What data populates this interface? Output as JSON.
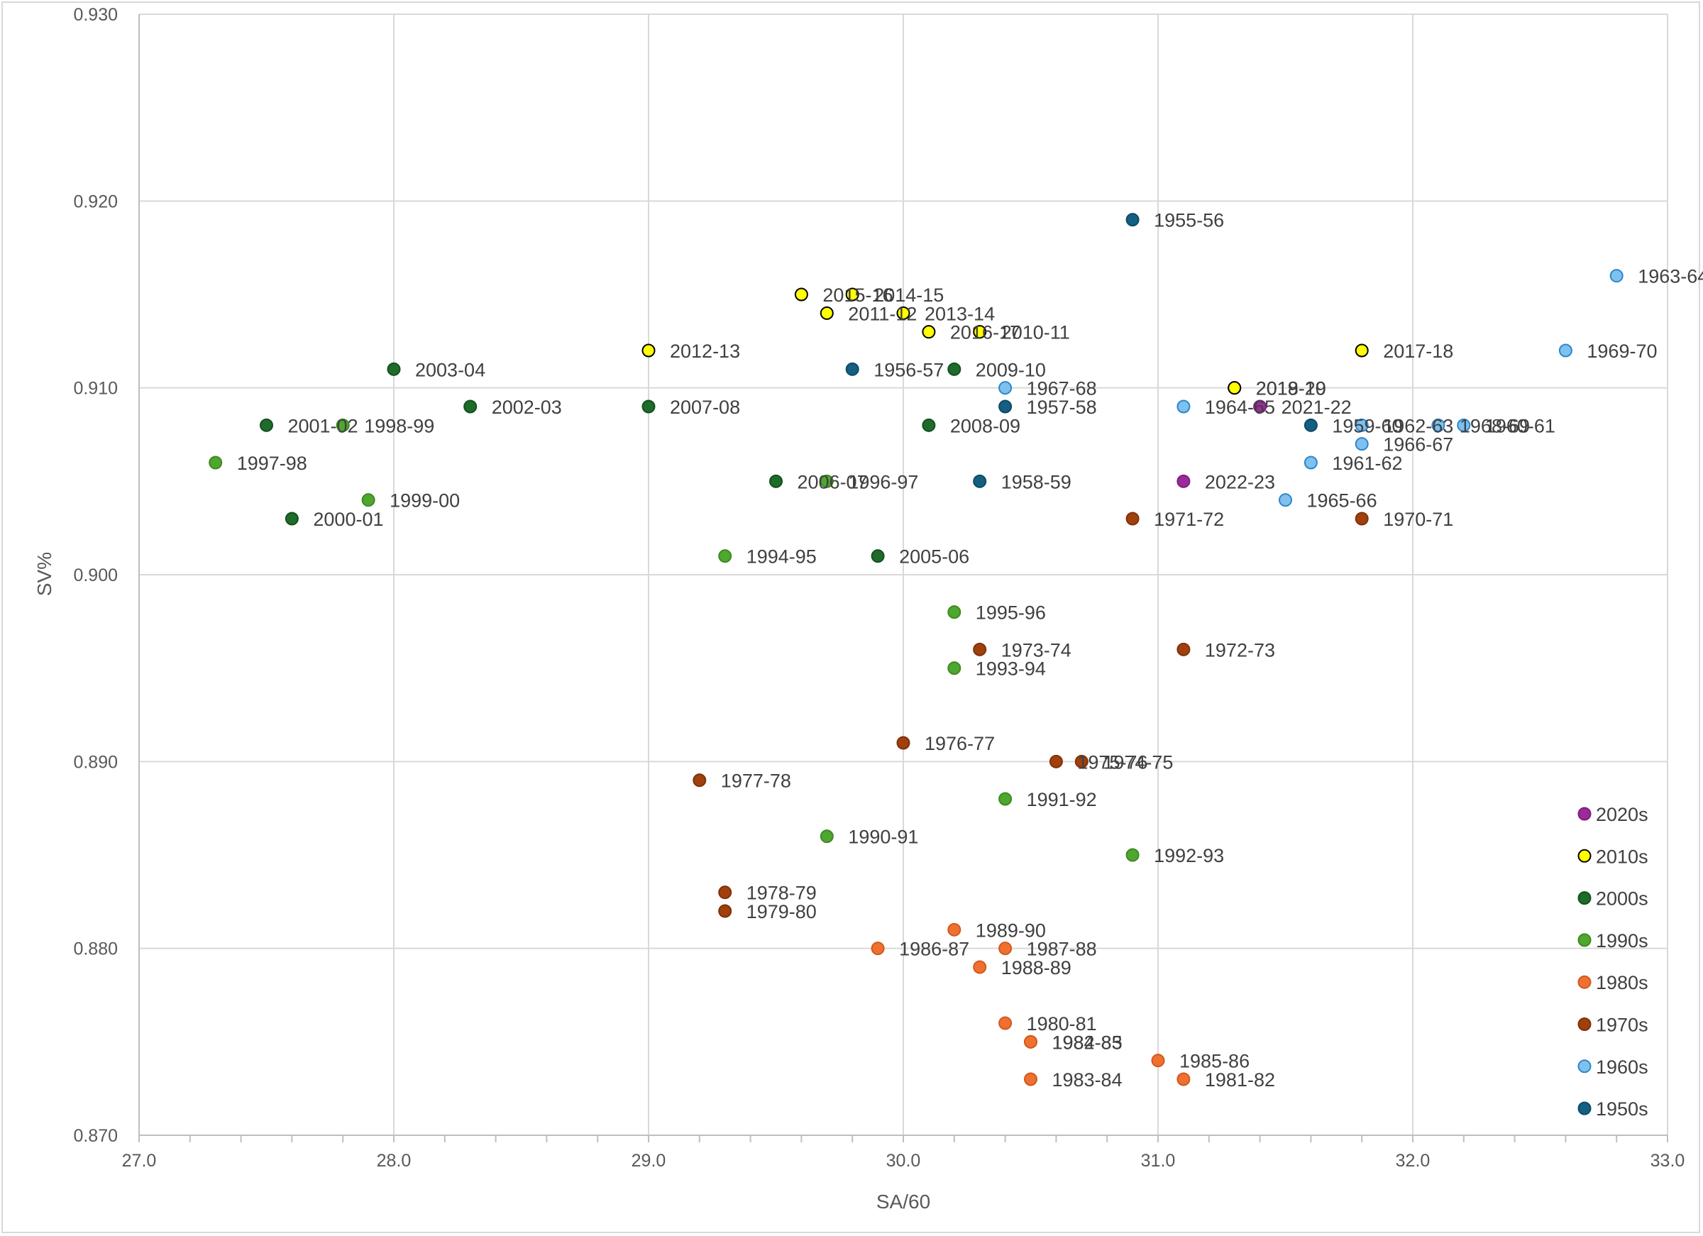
{
  "chart_data": {
    "type": "scatter",
    "title": "",
    "xlabel": "SA/60",
    "ylabel": "SV%",
    "xlim": [
      27.0,
      33.0
    ],
    "ylim": [
      0.87,
      0.93
    ],
    "x_ticks": [
      "27.0",
      "28.0",
      "29.0",
      "30.0",
      "31.0",
      "32.0",
      "33.0"
    ],
    "y_ticks": [
      "0.870",
      "0.880",
      "0.890",
      "0.900",
      "0.910",
      "0.920",
      "0.930"
    ],
    "grid": true,
    "legend_position": "right",
    "series": [
      {
        "name": "2020s",
        "color": "#9c2a9c",
        "stroke": "#7a1f7a",
        "points": [
          {
            "label": "2021-22",
            "x": 31.4,
            "y": 0.909
          },
          {
            "label": "2022-23",
            "x": 31.1,
            "y": 0.905
          }
        ]
      },
      {
        "name": "2010s",
        "color": "#ffff00",
        "stroke": "#000000",
        "points": [
          {
            "label": "2015-16",
            "x": 29.6,
            "y": 0.915
          },
          {
            "label": "2014-15",
            "x": 29.8,
            "y": 0.915
          },
          {
            "label": "2011-12",
            "x": 29.7,
            "y": 0.914
          },
          {
            "label": "2013-14",
            "x": 30.0,
            "y": 0.914
          },
          {
            "label": "2016-17",
            "x": 30.1,
            "y": 0.913
          },
          {
            "label": "2010-11",
            "x": 30.3,
            "y": 0.913
          },
          {
            "label": "2012-13",
            "x": 29.0,
            "y": 0.912
          },
          {
            "label": "2017-18",
            "x": 31.8,
            "y": 0.912
          },
          {
            "label": "2018-19",
            "x": 31.3,
            "y": 0.91
          },
          {
            "label": "2019-20",
            "x": 31.3,
            "y": 0.91
          }
        ]
      },
      {
        "name": "2000s",
        "color": "#1e6b2a",
        "stroke": "#155020",
        "points": [
          {
            "label": "2003-04",
            "x": 28.0,
            "y": 0.911
          },
          {
            "label": "2009-10",
            "x": 30.2,
            "y": 0.911
          },
          {
            "label": "2001-02",
            "x": 27.5,
            "y": 0.908
          },
          {
            "label": "2002-03",
            "x": 28.3,
            "y": 0.909
          },
          {
            "label": "2007-08",
            "x": 29.0,
            "y": 0.909
          },
          {
            "label": "2008-09",
            "x": 30.1,
            "y": 0.908
          },
          {
            "label": "2000-01",
            "x": 27.6,
            "y": 0.903
          },
          {
            "label": "2006-07",
            "x": 29.5,
            "y": 0.905
          },
          {
            "label": "2005-06",
            "x": 29.9,
            "y": 0.901
          }
        ]
      },
      {
        "name": "1990s",
        "color": "#4ea72e",
        "stroke": "#3d8a22",
        "points": [
          {
            "label": "1998-99",
            "x": 27.8,
            "y": 0.908
          },
          {
            "label": "1997-98",
            "x": 27.3,
            "y": 0.906
          },
          {
            "label": "1999-00",
            "x": 27.9,
            "y": 0.904
          },
          {
            "label": "1996-97",
            "x": 29.7,
            "y": 0.905
          },
          {
            "label": "1994-95",
            "x": 29.3,
            "y": 0.901
          },
          {
            "label": "1995-96",
            "x": 30.2,
            "y": 0.898
          },
          {
            "label": "1993-94",
            "x": 30.2,
            "y": 0.895
          },
          {
            "label": "1991-92",
            "x": 30.4,
            "y": 0.888
          },
          {
            "label": "1990-91",
            "x": 29.7,
            "y": 0.886
          },
          {
            "label": "1992-93",
            "x": 30.9,
            "y": 0.885
          }
        ]
      },
      {
        "name": "1980s",
        "color": "#f07030",
        "stroke": "#d05a20",
        "points": [
          {
            "label": "1989-90",
            "x": 30.2,
            "y": 0.881
          },
          {
            "label": "1986-87",
            "x": 29.9,
            "y": 0.88
          },
          {
            "label": "1987-88",
            "x": 30.4,
            "y": 0.88
          },
          {
            "label": "1988-89",
            "x": 30.3,
            "y": 0.879
          },
          {
            "label": "1980-81",
            "x": 30.4,
            "y": 0.876
          },
          {
            "label": "1984-85",
            "x": 30.5,
            "y": 0.875
          },
          {
            "label": "1982-83",
            "x": 30.5,
            "y": 0.875
          },
          {
            "label": "1985-86",
            "x": 31.0,
            "y": 0.874
          },
          {
            "label": "1983-84",
            "x": 30.5,
            "y": 0.873
          },
          {
            "label": "1981-82",
            "x": 31.1,
            "y": 0.873
          }
        ]
      },
      {
        "name": "1970s",
        "color": "#a0400c",
        "stroke": "#7f3109",
        "points": [
          {
            "label": "1971-72",
            "x": 30.9,
            "y": 0.903
          },
          {
            "label": "1970-71",
            "x": 31.8,
            "y": 0.903
          },
          {
            "label": "1973-74",
            "x": 30.3,
            "y": 0.896
          },
          {
            "label": "1972-73",
            "x": 31.1,
            "y": 0.896
          },
          {
            "label": "1976-77",
            "x": 30.0,
            "y": 0.891
          },
          {
            "label": "1975-76",
            "x": 30.6,
            "y": 0.89
          },
          {
            "label": "1974-75",
            "x": 30.7,
            "y": 0.89
          },
          {
            "label": "1977-78",
            "x": 29.2,
            "y": 0.889
          },
          {
            "label": "1978-79",
            "x": 29.3,
            "y": 0.883
          },
          {
            "label": "1979-80",
            "x": 29.3,
            "y": 0.882
          }
        ]
      },
      {
        "name": "1960s",
        "color": "#7ec1ee",
        "stroke": "#2e86c8",
        "points": [
          {
            "label": "1963-64",
            "x": 32.8,
            "y": 0.916
          },
          {
            "label": "1969-70",
            "x": 32.6,
            "y": 0.912
          },
          {
            "label": "1967-68",
            "x": 30.4,
            "y": 0.91
          },
          {
            "label": "1964-65",
            "x": 31.1,
            "y": 0.909
          },
          {
            "label": "1962-63",
            "x": 31.8,
            "y": 0.908
          },
          {
            "label": "1968-69",
            "x": 32.1,
            "y": 0.908
          },
          {
            "label": "1960-61",
            "x": 32.2,
            "y": 0.908
          },
          {
            "label": "1966-67",
            "x": 31.8,
            "y": 0.907
          },
          {
            "label": "1961-62",
            "x": 31.6,
            "y": 0.906
          },
          {
            "label": "1965-66",
            "x": 31.5,
            "y": 0.904
          }
        ]
      },
      {
        "name": "1950s",
        "color": "#145f82",
        "stroke": "#0e4a66",
        "points": [
          {
            "label": "1955-56",
            "x": 30.9,
            "y": 0.919
          },
          {
            "label": "1956-57",
            "x": 29.8,
            "y": 0.911
          },
          {
            "label": "1957-58",
            "x": 30.4,
            "y": 0.909
          },
          {
            "label": "1959-60",
            "x": 31.6,
            "y": 0.908
          },
          {
            "label": "1958-59",
            "x": 30.3,
            "y": 0.905
          }
        ]
      }
    ]
  }
}
